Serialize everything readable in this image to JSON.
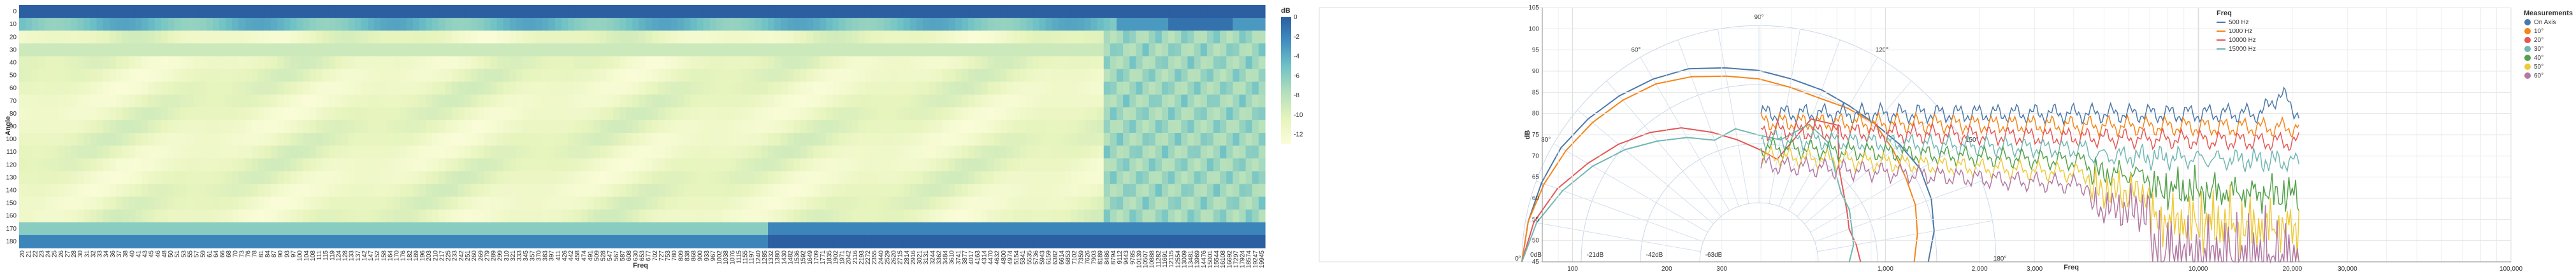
{
  "chart_data": [
    {
      "type": "heatmap",
      "xlabel": "Freq",
      "ylabel": "Angle",
      "angles": [
        0,
        10,
        20,
        30,
        40,
        50,
        60,
        70,
        80,
        90,
        100,
        110,
        120,
        130,
        140,
        150,
        160,
        170,
        180
      ],
      "freq_ticks": [
        "20",
        "21",
        "22",
        "23",
        "24",
        "25",
        "26",
        "27",
        "28",
        "30",
        "31",
        "32",
        "33",
        "34",
        "36",
        "37",
        "38",
        "40",
        "41",
        "43",
        "45",
        "46",
        "48",
        "50",
        "51",
        "53",
        "55",
        "57",
        "59",
        "61",
        "64",
        "66",
        "68",
        "70",
        "73",
        "76",
        "78",
        "81",
        "84",
        "87",
        "90",
        "93",
        "97",
        "100",
        "104",
        "108",
        "111",
        "115",
        "119",
        "124",
        "128",
        "133",
        "137",
        "142",
        "147",
        "152",
        "158",
        "164",
        "170",
        "176",
        "182",
        "189",
        "196",
        "203",
        "210",
        "217",
        "225",
        "233",
        "242",
        "251",
        "260",
        "269",
        "279",
        "289",
        "299",
        "310",
        "321",
        "333",
        "345",
        "357",
        "370",
        "383",
        "397",
        "411",
        "426",
        "442",
        "458",
        "474",
        "491",
        "509",
        "528",
        "547",
        "567",
        "587",
        "608",
        "630",
        "653",
        "677",
        "702",
        "727",
        "753",
        "780",
        "809",
        "838",
        "868",
        "900",
        "933",
        "967",
        "1002",
        "1038",
        "1076",
        "1115",
        "1155",
        "1197",
        "1240",
        "1285",
        "1332",
        "1380",
        "1430",
        "1482",
        "1536",
        "1592",
        "1649",
        "1709",
        "1771",
        "1835",
        "1902",
        "1971",
        "2042",
        "2116",
        "2193",
        "2272",
        "2355",
        "2440",
        "2529",
        "2620",
        "2715",
        "2814",
        "2916",
        "3021",
        "3131",
        "3244",
        "3362",
        "3484",
        "3610",
        "3741",
        "3877",
        "4017",
        "4163",
        "4314",
        "4470",
        "4632",
        "4800",
        "4974",
        "5154",
        "5341",
        "5535",
        "5736",
        "5943",
        "6159",
        "6382",
        "6614",
        "6853",
        "7102",
        "7359",
        "7626",
        "7903",
        "8189",
        "8486",
        "8794",
        "9112",
        "9443",
        "9785",
        "10139",
        "10507",
        "10888",
        "11282",
        "11691",
        "12115",
        "12554",
        "13009",
        "13481",
        "13969",
        "14476",
        "15001",
        "15544",
        "16108",
        "16692",
        "17297",
        "17924",
        "18574",
        "19247",
        "19945"
      ],
      "color_scale": {
        "title": "dB",
        "ticks": [
          "0",
          "-2",
          "-4",
          "-6",
          "-8",
          "-10",
          "-12"
        ],
        "domain": [
          -13,
          0
        ]
      }
    },
    {
      "type": "polar-line",
      "angle_ticks": [
        "0°",
        "30°",
        "60°",
        "90°",
        "120°",
        "150°",
        "180°"
      ],
      "radial_ticks": [
        "0dB",
        "-21dB",
        "-42dB",
        "-63dB"
      ],
      "legend_title": "Freq",
      "series": [
        {
          "name": "500 Hz",
          "color": "#4c78a8",
          "values": [
            0,
            -1,
            -2,
            -3,
            -5,
            -7,
            -9,
            -11,
            -14,
            -16,
            -18,
            -19,
            -20,
            -20,
            -19,
            -18,
            -19,
            -21,
            -24
          ]
        },
        {
          "name": "1000 Hz",
          "color": "#f58518",
          "values": [
            0,
            -1,
            -3,
            -5,
            -7,
            -9,
            -11,
            -14,
            -17,
            -19,
            -21,
            -22,
            -21,
            -20,
            -22,
            -24,
            -25,
            -27,
            -29
          ]
        },
        {
          "name": "10000 Hz",
          "color": "#e45756",
          "values": [
            0,
            -3,
            -8,
            -14,
            -19,
            -24,
            -29,
            -35,
            -40,
            -44,
            -47,
            -30,
            -28,
            -40,
            -45,
            -48,
            -50,
            -49,
            -48
          ]
        },
        {
          "name": "15000 Hz",
          "color": "#72b7b2",
          "values": [
            0,
            -4,
            -10,
            -16,
            -22,
            -28,
            -33,
            -38,
            -36,
            -39,
            -40,
            -32,
            -35,
            -42,
            -46,
            -47,
            -49,
            -50,
            -52
          ]
        }
      ]
    },
    {
      "type": "line",
      "xlabel": "Freq",
      "ylabel": "dB",
      "xscale": "log",
      "xlim": [
        80,
        100000
      ],
      "ylim": [
        45,
        105
      ],
      "y_ticks": [
        "45",
        "50",
        "55",
        "60",
        "65",
        "70",
        "75",
        "80",
        "85",
        "90",
        "95",
        "100",
        "105"
      ],
      "x_ticks": [
        "100",
        "200",
        "300",
        "1,000",
        "2,000",
        "3,000",
        "10,000",
        "20,000",
        "30,000",
        "100,000"
      ],
      "legend_title": "Measurements",
      "series": [
        {
          "name": "On Axis",
          "color": "#4c78a8",
          "level": 86
        },
        {
          "name": "10°",
          "color": "#f58518",
          "level": 84
        },
        {
          "name": "20°",
          "color": "#e45756",
          "level": 82
        },
        {
          "name": "30°",
          "color": "#72b7b2",
          "level": 80
        },
        {
          "name": "40°",
          "color": "#54a24b",
          "level": 78
        },
        {
          "name": "50°",
          "color": "#eeca3b",
          "level": 76
        },
        {
          "name": "60°",
          "color": "#b279a2",
          "level": 74
        }
      ]
    }
  ]
}
